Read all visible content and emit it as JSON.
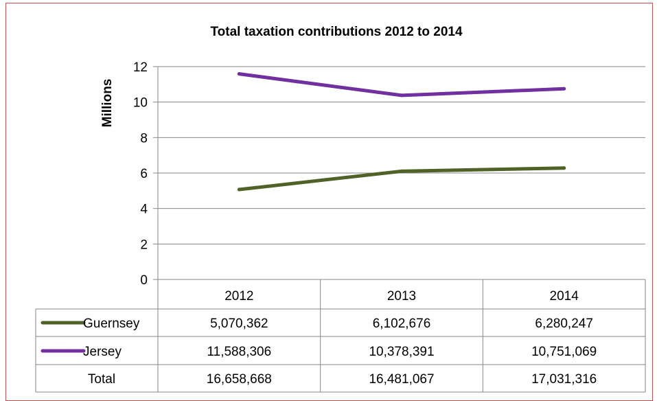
{
  "chart_data": {
    "type": "line",
    "title": "Total taxation contributions 2012 to 2014",
    "ylabel": "Millions",
    "categories": [
      "2012",
      "2013",
      "2014"
    ],
    "ylim": [
      0,
      12
    ],
    "yticks": [
      "0",
      "2",
      "4",
      "6",
      "8",
      "10",
      "12"
    ],
    "grid": true,
    "series": [
      {
        "name": "Guernsey",
        "values": [
          5.070362,
          6.102676,
          6.280247
        ],
        "color": "#4f6228"
      },
      {
        "name": "Jersey",
        "values": [
          11.588306,
          10.378391,
          10.751069
        ],
        "color": "#7030a0"
      }
    ],
    "data_table": {
      "rows": [
        {
          "label": "Guernsey",
          "cells": [
            "5,070,362",
            "6,102,676",
            "6,280,247"
          ],
          "legend_color": "#4f6228"
        },
        {
          "label": "Jersey",
          "cells": [
            "11,588,306",
            "10,378,391",
            "10,751,069"
          ],
          "legend_color": "#7030a0"
        },
        {
          "label": "Total",
          "cells": [
            "16,658,668",
            "16,481,067",
            "17,031,316"
          ]
        }
      ]
    }
  },
  "colors": {
    "frame": "#c0504d",
    "grid": "#868686"
  }
}
